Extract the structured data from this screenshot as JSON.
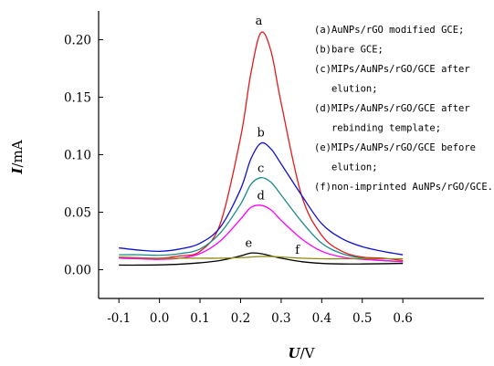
{
  "chart_data": {
    "type": "line",
    "xlabel": {
      "var": "U",
      "unit": "/V"
    },
    "ylabel": {
      "var": "I",
      "unit": "/mA"
    },
    "xlim": [
      -0.15,
      0.8
    ],
    "ylim": [
      -0.025,
      0.225
    ],
    "xticks": [
      -0.1,
      0.0,
      0.1,
      0.2,
      0.3,
      0.4,
      0.5,
      0.6
    ],
    "xtick_labels": [
      "-0.1",
      "0.0",
      "0.1",
      "0.2",
      "0.3",
      "0.4",
      "0.5",
      "0.6"
    ],
    "yticks": [
      0.0,
      0.05,
      0.1,
      0.15,
      0.2
    ],
    "ytick_labels": [
      "0.00",
      "0.05",
      "0.10",
      "0.15",
      "0.20"
    ],
    "grid": false,
    "x": [
      -0.1,
      -0.05,
      0.0,
      0.05,
      0.1,
      0.15,
      0.2,
      0.225,
      0.25,
      0.275,
      0.3,
      0.35,
      0.4,
      0.45,
      0.5,
      0.55,
      0.6
    ],
    "series": [
      {
        "name": "a",
        "color": "#e41a1c",
        "values": [
          0.011,
          0.01,
          0.01,
          0.012,
          0.016,
          0.04,
          0.115,
          0.17,
          0.206,
          0.19,
          0.145,
          0.065,
          0.03,
          0.016,
          0.011,
          0.01,
          0.008
        ]
      },
      {
        "name": "b",
        "color": "#1010d0",
        "values": [
          0.019,
          0.017,
          0.016,
          0.018,
          0.023,
          0.037,
          0.07,
          0.096,
          0.11,
          0.105,
          0.092,
          0.065,
          0.04,
          0.027,
          0.02,
          0.016,
          0.013
        ]
      },
      {
        "name": "c",
        "color": "#1a8a8a",
        "values": [
          0.013,
          0.013,
          0.0125,
          0.014,
          0.018,
          0.032,
          0.057,
          0.074,
          0.08,
          0.076,
          0.065,
          0.042,
          0.023,
          0.014,
          0.01,
          0.008,
          0.007
        ]
      },
      {
        "name": "d",
        "color": "#ff00ff",
        "values": [
          0.01,
          0.0095,
          0.009,
          0.01,
          0.014,
          0.025,
          0.044,
          0.054,
          0.056,
          0.052,
          0.043,
          0.027,
          0.016,
          0.011,
          0.009,
          0.008,
          0.007
        ]
      },
      {
        "name": "e",
        "color": "#000000",
        "values": [
          0.004,
          0.004,
          0.0042,
          0.0048,
          0.006,
          0.008,
          0.012,
          0.0145,
          0.014,
          0.012,
          0.01,
          0.007,
          0.0055,
          0.005,
          0.005,
          0.0052,
          0.0055
        ]
      },
      {
        "name": "f",
        "color": "#8a8a10",
        "values": [
          0.011,
          0.0105,
          0.01,
          0.01,
          0.01,
          0.01,
          0.0105,
          0.011,
          0.0115,
          0.0115,
          0.011,
          0.01,
          0.0095,
          0.0095,
          0.0095,
          0.0095,
          0.0095
        ]
      }
    ],
    "curve_labels": [
      {
        "text": "a",
        "x": 0.245,
        "y": 0.213
      },
      {
        "text": "b",
        "x": 0.25,
        "y": 0.116
      },
      {
        "text": "c",
        "x": 0.25,
        "y": 0.085
      },
      {
        "text": "d",
        "x": 0.25,
        "y": 0.061
      },
      {
        "text": "e",
        "x": 0.22,
        "y": 0.02
      },
      {
        "text": "f",
        "x": 0.34,
        "y": 0.014
      }
    ],
    "legend": {
      "placement": "top-right",
      "lines": [
        "(a)AuNPs/rGO modified GCE;",
        "(b)bare GCE;",
        "(c)MIPs/AuNPs/rGO/GCE after",
        "   elution;",
        "(d)MIPs/AuNPs/rGO/GCE after",
        "   rebinding template;",
        "(e)MIPs/AuNPs/rGO/GCE before",
        "   elution;",
        "(f)non-imprinted AuNPs/rGO/GCE."
      ]
    }
  }
}
